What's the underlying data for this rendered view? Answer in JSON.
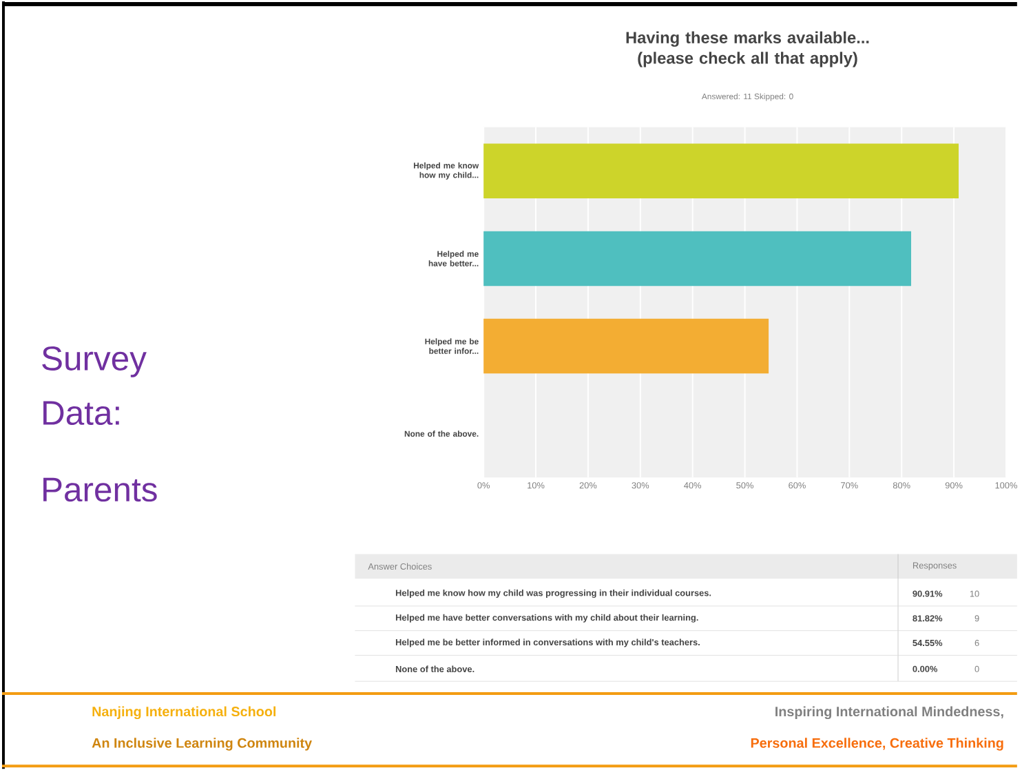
{
  "chart_data": {
    "type": "bar",
    "orientation": "horizontal",
    "title": "Having these marks available... (please check all that apply)",
    "subtitle": "Answered: 11   Skipped: 0",
    "categories": [
      "Helped me know how my child...",
      "Helped me have better...",
      "Helped me be better infor...",
      "None of the above."
    ],
    "values": [
      90.91,
      81.82,
      54.55,
      0
    ],
    "colors": [
      "#cdd42a",
      "#4fbfbf",
      "#f3ad33",
      "#bbbbbb"
    ],
    "xlim": [
      0,
      100
    ],
    "xticks": [
      {
        "value": 0,
        "label": "0%"
      },
      {
        "value": 10,
        "label": "10%"
      },
      {
        "value": 20,
        "label": "20%"
      },
      {
        "value": 30,
        "label": "30%"
      },
      {
        "value": 40,
        "label": "40%"
      },
      {
        "value": 50,
        "label": "50%"
      },
      {
        "value": 60,
        "label": "60%"
      },
      {
        "value": 70,
        "label": "70%"
      },
      {
        "value": 80,
        "label": "80%"
      },
      {
        "value": 90,
        "label": "90%"
      },
      {
        "value": 100,
        "label": "100%"
      }
    ],
    "grid": "x",
    "annotations": [
      "Survey Data:",
      "Parents",
      "Answer Choices",
      "Responses",
      "Helped me know how my child was progressing in their individual courses.",
      "Helped me have better conversations with my child about their learning.",
      "Helped me be better informed in conversations with my child's teachers.",
      "None of the above.",
      "10",
      "9",
      "6",
      "0",
      "90.91%",
      "81.82%",
      "54.55%",
      "0.00%",
      "Nanjing International School",
      "An Inclusive Learning Community",
      "Inspiring International Mindedness,",
      "Personal Excellence, Creative Thinking"
    ]
  }
}
